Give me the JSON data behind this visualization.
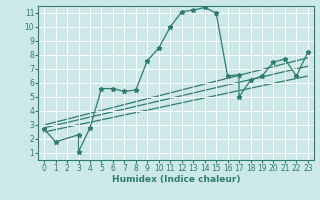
{
  "bg_color": "#cce8e8",
  "grid_color": "#ffffff",
  "line_color": "#2e7d6e",
  "xlabel": "Humidex (Indice chaleur)",
  "xlim": [
    -0.5,
    23.5
  ],
  "ylim": [
    0.5,
    11.5
  ],
  "xticks": [
    0,
    1,
    2,
    3,
    4,
    5,
    6,
    7,
    8,
    9,
    10,
    11,
    12,
    13,
    14,
    15,
    16,
    17,
    18,
    19,
    20,
    21,
    22,
    23
  ],
  "yticks": [
    1,
    2,
    3,
    4,
    5,
    6,
    7,
    8,
    9,
    10,
    11
  ],
  "line1_x": [
    0,
    1,
    3,
    3,
    4,
    5,
    6,
    7,
    8,
    9,
    10,
    11,
    12,
    13,
    14,
    15,
    16,
    17,
    17,
    18,
    19,
    20,
    21,
    22,
    23
  ],
  "line1_y": [
    2.7,
    1.8,
    2.3,
    1.1,
    2.8,
    5.6,
    5.6,
    5.4,
    5.5,
    7.6,
    8.5,
    10.0,
    11.1,
    11.2,
    11.4,
    11.0,
    6.5,
    6.6,
    5.0,
    6.2,
    6.5,
    7.5,
    7.7,
    6.5,
    8.2
  ],
  "line2_x": [
    0,
    23
  ],
  "line2_y": [
    3.0,
    7.8
  ],
  "line3_x": [
    0,
    23
  ],
  "line3_y": [
    2.8,
    7.2
  ],
  "line4_x": [
    0,
    23
  ],
  "line4_y": [
    2.5,
    6.5
  ],
  "marker": "*",
  "markersize": 3.5,
  "linewidth": 0.9,
  "tick_fontsize": 5.5,
  "xlabel_fontsize": 6.5
}
